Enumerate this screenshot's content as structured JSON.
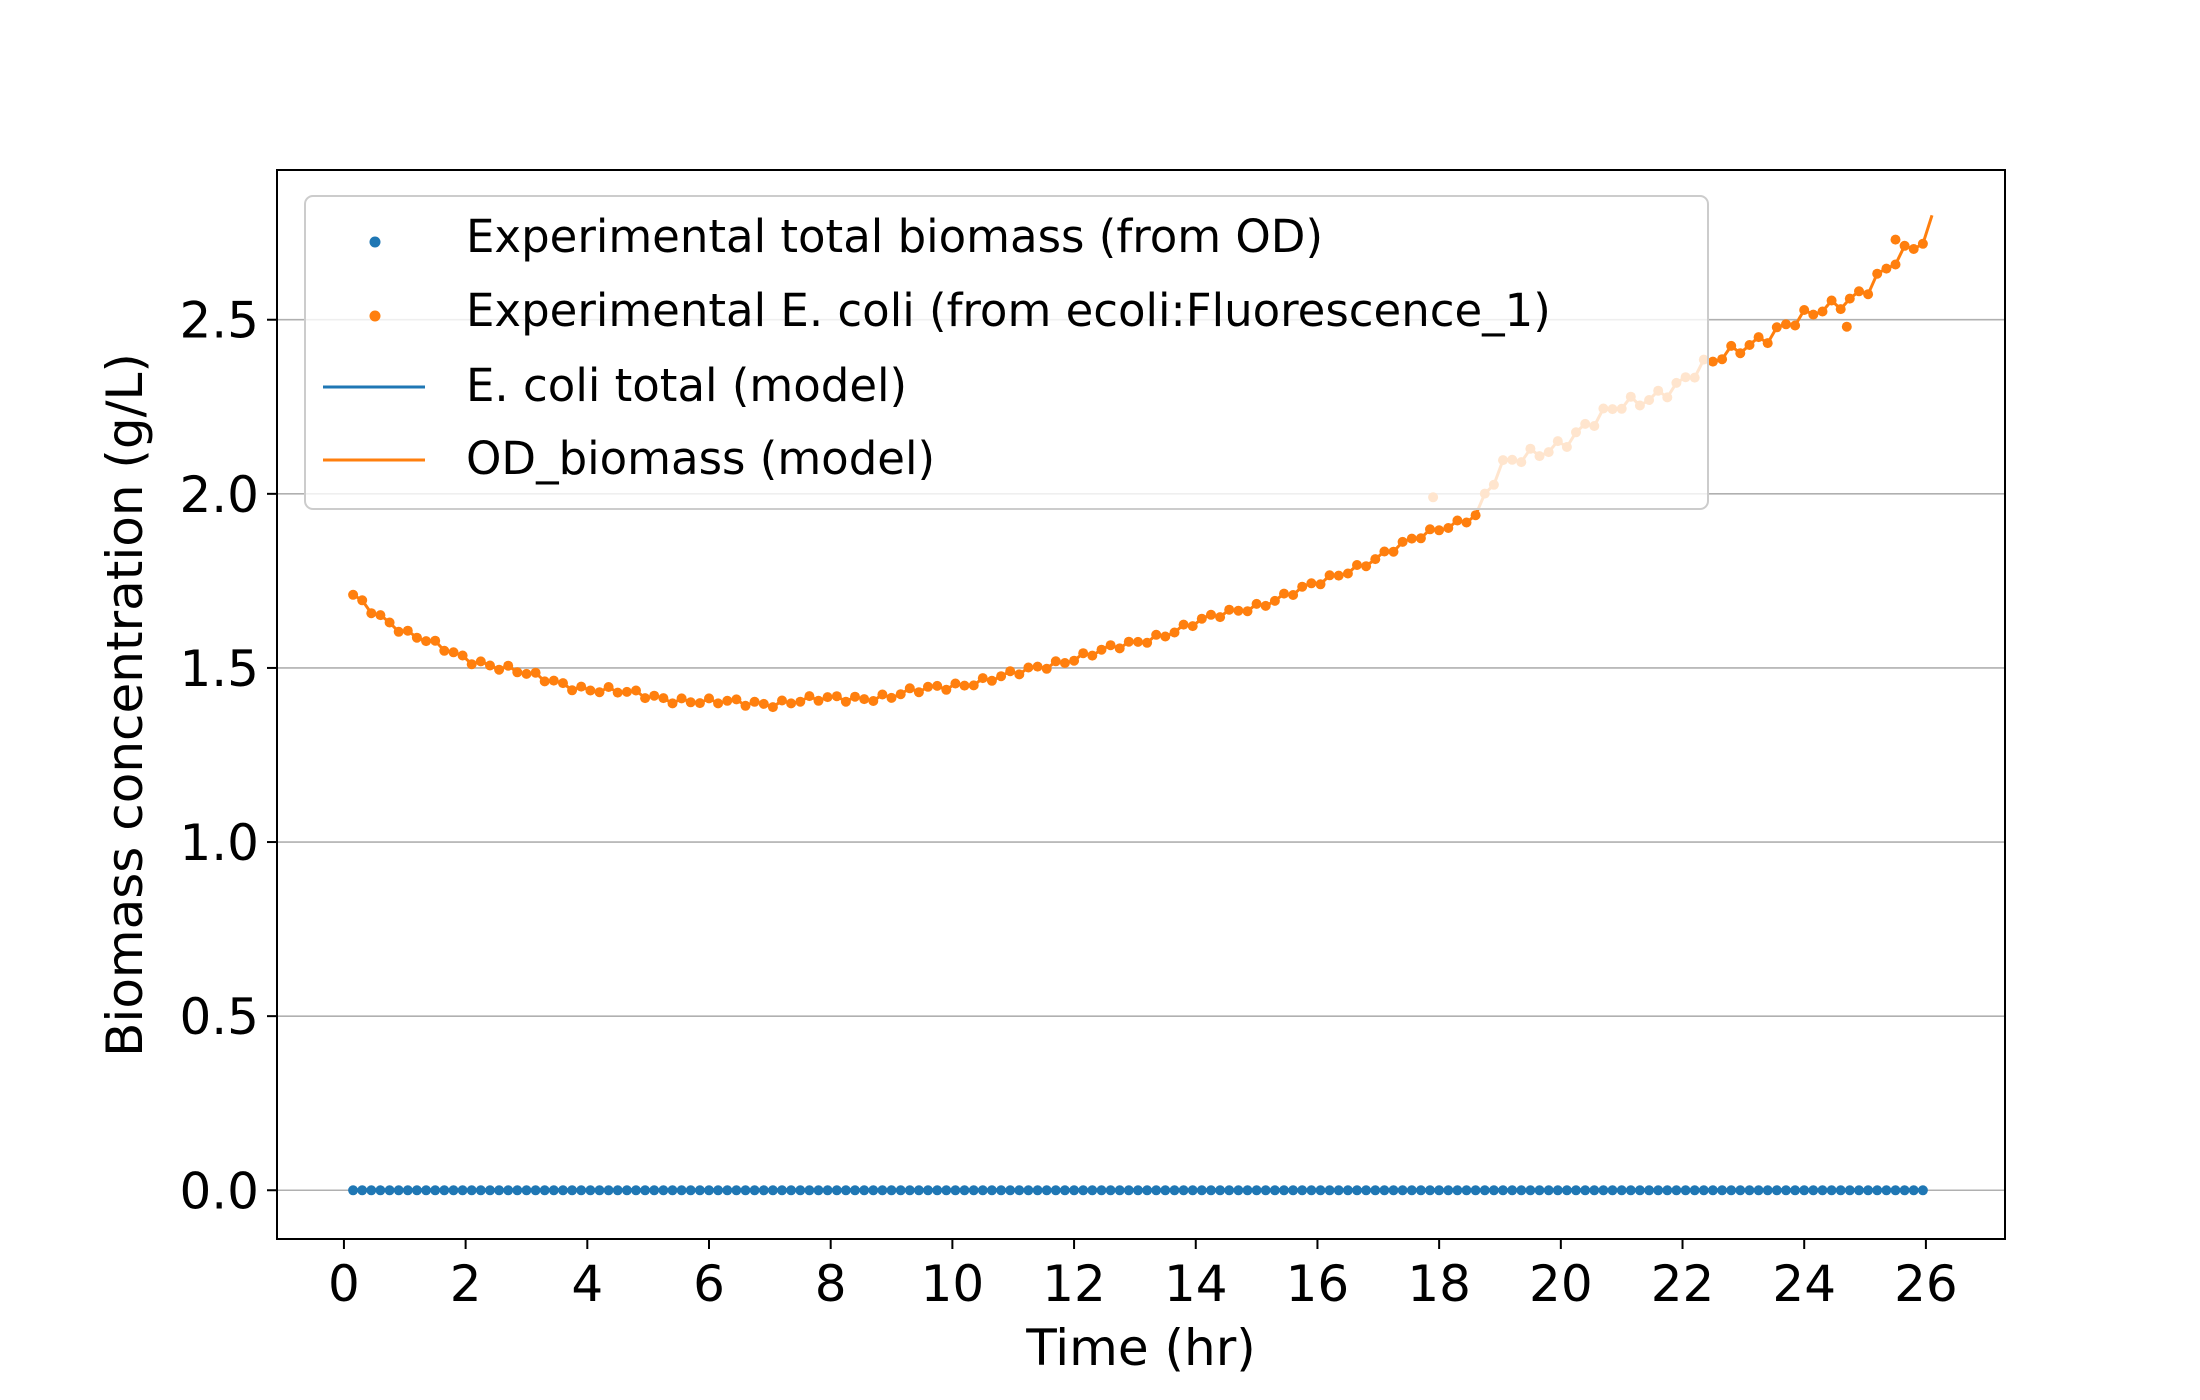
{
  "chart_data": {
    "type": "line",
    "title": "",
    "xlabel": "Time (hr)",
    "ylabel": "Biomass concentration (g/L)",
    "xlim": [
      -1.1,
      27.3
    ],
    "ylim": [
      -0.14,
      2.93
    ],
    "xticks": [
      0,
      2,
      4,
      6,
      8,
      10,
      12,
      14,
      16,
      18,
      20,
      22,
      24,
      26
    ],
    "yticks": [
      0.0,
      0.5,
      1.0,
      1.5,
      2.0,
      2.5
    ],
    "xtick_labels": [
      "0",
      "2",
      "4",
      "6",
      "8",
      "10",
      "12",
      "14",
      "16",
      "18",
      "20",
      "22",
      "24",
      "26"
    ],
    "ytick_labels": [
      "0.0",
      "0.5",
      "1.0",
      "1.5",
      "2.0",
      "2.5"
    ],
    "grid": "horizontal",
    "legend_position": "top-left",
    "x_start": 0.15,
    "x_step": 0.15,
    "point_count": 173,
    "series": [
      {
        "name": "Experimental total biomass (from OD)",
        "kind": "scatter",
        "color": "#1f77b4",
        "values_constant": 0.0
      },
      {
        "name": "Experimental E. coli (from ecoli:Fluorescence_1)",
        "kind": "scatter",
        "color": "#ff7f0e",
        "key_points": [
          [
            0.15,
            1.71
          ],
          [
            1.0,
            1.6
          ],
          [
            2.0,
            1.53
          ],
          [
            3.0,
            1.48
          ],
          [
            4.0,
            1.44
          ],
          [
            5.0,
            1.42
          ],
          [
            6.0,
            1.4
          ],
          [
            7.0,
            1.4
          ],
          [
            8.0,
            1.41
          ],
          [
            9.0,
            1.42
          ],
          [
            10.0,
            1.45
          ],
          [
            11.0,
            1.48
          ],
          [
            12.0,
            1.53
          ],
          [
            13.0,
            1.57
          ],
          [
            14.0,
            1.63
          ],
          [
            15.0,
            1.68
          ],
          [
            16.0,
            1.74
          ],
          [
            17.0,
            1.82
          ],
          [
            18.0,
            1.9
          ],
          [
            18.6,
            1.94
          ],
          [
            19.0,
            2.07
          ],
          [
            20.0,
            2.15
          ],
          [
            21.0,
            2.25
          ],
          [
            22.0,
            2.32
          ],
          [
            23.0,
            2.43
          ],
          [
            24.0,
            2.5
          ],
          [
            25.0,
            2.59
          ],
          [
            25.9,
            2.72
          ]
        ],
        "outliers": [
          [
            17.9,
            1.99
          ],
          [
            24.7,
            2.48
          ],
          [
            25.5,
            2.73
          ]
        ]
      },
      {
        "name": "E. coli total (model)",
        "kind": "line",
        "color": "#1f77b4",
        "values_constant": 0.0
      },
      {
        "name": "OD_biomass (model)",
        "kind": "line",
        "color": "#ff7f0e",
        "end_point": [
          26.1,
          2.8
        ]
      }
    ]
  }
}
